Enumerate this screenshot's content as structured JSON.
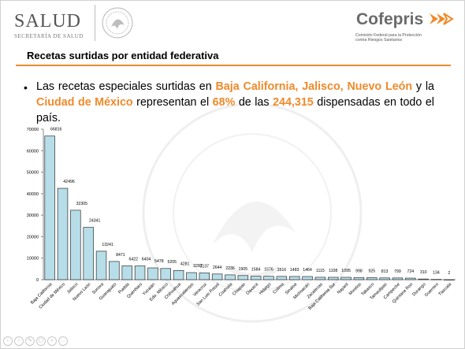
{
  "header": {
    "brand_left": "SALUD",
    "brand_left_sub": "SECRETARÍA DE SALUD",
    "brand_right": "Cofepris",
    "brand_right_sub1": "Comisión Federal para la Protección",
    "brand_right_sub2": "contra Riesgos Sanitarios"
  },
  "slide": {
    "title": "Recetas surtidas por entidad federativa",
    "bullet": "•",
    "text_1": "Las recetas especiales surtidas en ",
    "hl_1": "Baja California, Jalisco, Nuevo León",
    "text_2": " y la ",
    "hl_2": "Ciudad de México",
    "text_3": " representan el ",
    "hl_3": "68%",
    "text_4": " de las ",
    "hl_4": "244,315",
    "text_5": " dispensadas en todo el país."
  },
  "colors": {
    "accent": "#ef8a2b",
    "bar_fill": "#b6dde8",
    "bar_stroke": "#2f2f2f"
  },
  "chart_data": {
    "type": "bar",
    "categories": [
      "Baja California",
      "Ciudad de México",
      "Jalisco",
      "Nuevo León",
      "Sonora",
      "Guanajuato",
      "Puebla",
      "Querétaro",
      "Yucatán",
      "Edo. México",
      "Chihuahua",
      "Aguascalientes",
      "Veracruz",
      "San Luis Potosí",
      "Coahuila",
      "Chiapas",
      "Oaxaca",
      "Hidalgo",
      "Colima",
      "Sinaloa",
      "Michoacán",
      "Zacatecas",
      "Baja California Sur",
      "Nayarit",
      "Morelos",
      "Tabasco",
      "Tamaulipas",
      "Campeche",
      "Quintana Roo",
      "Durango",
      "Guerrero",
      "Tlaxcala"
    ],
    "values": [
      66816,
      42496,
      32305,
      24341,
      13241,
      8471,
      6422,
      6404,
      5478,
      5205,
      4281,
      3287,
      3137,
      2644,
      2236,
      1905,
      1584,
      1576,
      1516,
      1483,
      1464,
      1115,
      1108,
      1095,
      998,
      925,
      813,
      799,
      724,
      310,
      134,
      2
    ],
    "ylim": [
      0,
      70000
    ],
    "yticks": [
      0,
      10000,
      20000,
      30000,
      40000,
      50000,
      60000,
      70000
    ],
    "ytick_labels": [
      "0",
      "10000",
      "20000",
      "30000",
      "40000",
      "50000",
      "60000",
      "70000"
    ],
    "data_labels": [
      "66816",
      "42496",
      "32305",
      "24341",
      "13241",
      "8471",
      "6422",
      "6404",
      "5478",
      "5205",
      "4281",
      "3287",
      "3137",
      "2644",
      "2236",
      "1905",
      "1584",
      "1576",
      "1516",
      "1483",
      "1464",
      "1115",
      "1108",
      "1095",
      "998",
      "925",
      "813",
      "799",
      "724",
      "310",
      "134",
      "2"
    ],
    "grid": false,
    "legend": "none"
  },
  "footer": {
    "icons": [
      "prev-icon",
      "next-icon",
      "pen-icon",
      "slides-icon",
      "zoom-icon",
      "more-icon"
    ]
  }
}
